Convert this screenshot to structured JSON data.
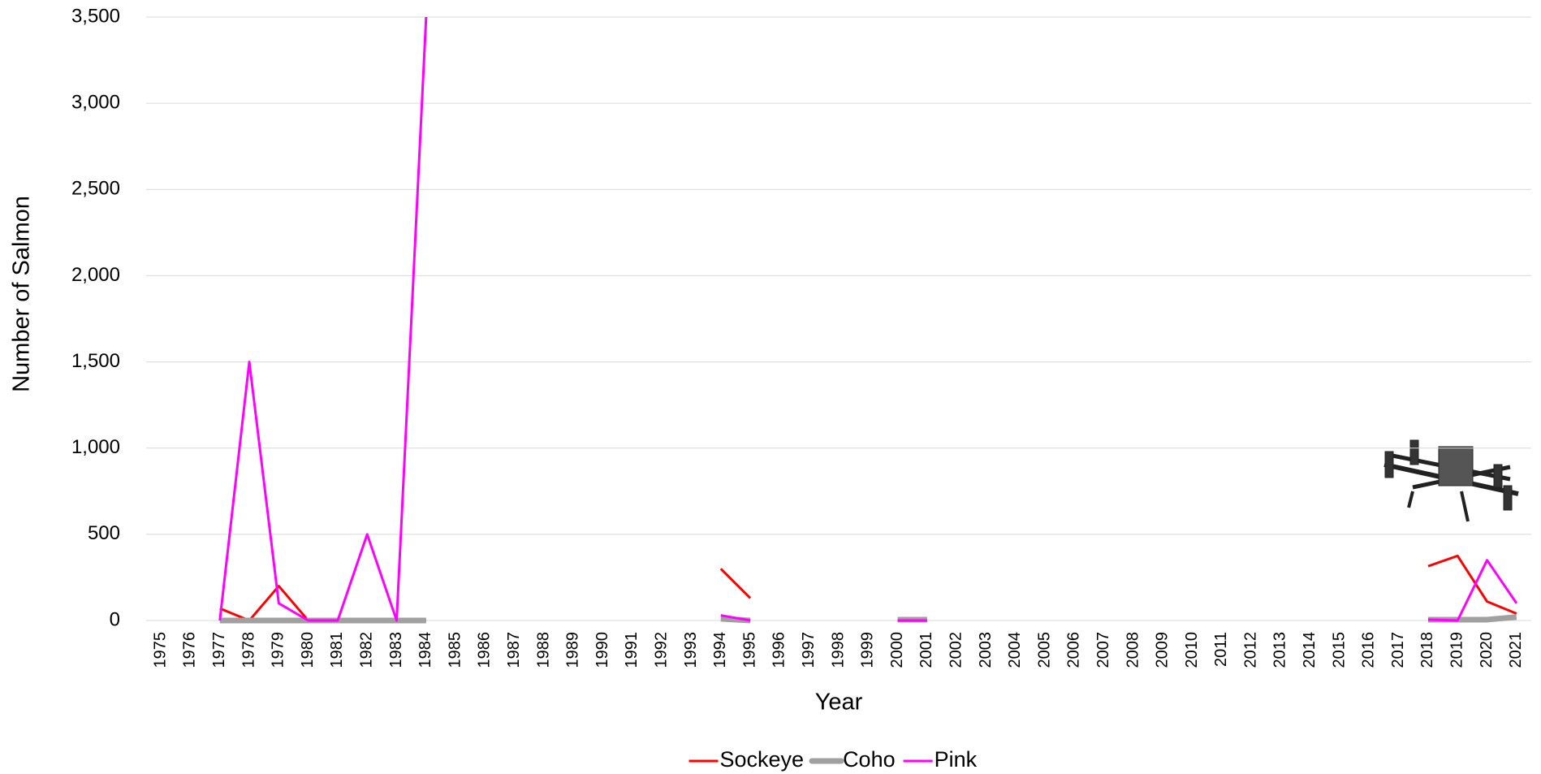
{
  "chart_data": {
    "type": "line",
    "y_label": "Number of Salmon",
    "x_label": "Year",
    "categories": [
      "1975",
      "1976",
      "1977",
      "1978",
      "1979",
      "1980",
      "1981",
      "1982",
      "1983",
      "1984",
      "1985",
      "1986",
      "1987",
      "1988",
      "1989",
      "1990",
      "1991",
      "1992",
      "1993",
      "1994",
      "1995",
      "1996",
      "1997",
      "1998",
      "1999",
      "2000",
      "2001",
      "2002",
      "2003",
      "2004",
      "2005",
      "2006",
      "2007",
      "2008",
      "2009",
      "2010",
      "2011",
      "2012",
      "2013",
      "2014",
      "2015",
      "2016",
      "2017",
      "2018",
      "2019",
      "2020",
      "2021"
    ],
    "series": [
      {
        "name": "Sockeye",
        "color": "#ff0000",
        "width": 3,
        "values": [
          null,
          null,
          70,
          0,
          200,
          0,
          0,
          0,
          0,
          0,
          null,
          null,
          null,
          null,
          null,
          null,
          null,
          null,
          null,
          300,
          130,
          null,
          null,
          null,
          null,
          null,
          null,
          null,
          null,
          null,
          null,
          null,
          null,
          null,
          null,
          null,
          null,
          null,
          null,
          null,
          null,
          null,
          null,
          315,
          375,
          110,
          40
        ]
      },
      {
        "name": "Coho",
        "color": "#a0a0a0",
        "width": 7,
        "values": [
          null,
          null,
          0,
          0,
          0,
          0,
          0,
          0,
          0,
          0,
          null,
          null,
          null,
          null,
          null,
          null,
          null,
          null,
          null,
          10,
          0,
          null,
          null,
          null,
          null,
          5,
          5,
          null,
          null,
          null,
          null,
          null,
          null,
          null,
          null,
          null,
          null,
          null,
          null,
          null,
          null,
          null,
          null,
          5,
          5,
          5,
          20
        ]
      },
      {
        "name": "Pink",
        "color": "#ff00ff",
        "width": 3,
        "values": [
          null,
          null,
          0,
          1500,
          100,
          0,
          0,
          500,
          0,
          3500,
          null,
          null,
          null,
          null,
          null,
          null,
          null,
          null,
          null,
          30,
          0,
          null,
          null,
          null,
          null,
          0,
          0,
          null,
          null,
          null,
          null,
          null,
          null,
          null,
          null,
          null,
          null,
          null,
          null,
          null,
          null,
          null,
          null,
          5,
          0,
          350,
          100
        ]
      }
    ],
    "ylim": [
      0,
      3500
    ],
    "yticks": [
      0,
      {
        "value": 500,
        "label": "500"
      },
      {
        "value": 1000,
        "label": "1,000"
      },
      {
        "value": 1500,
        "label": "1,500"
      },
      {
        "value": 2000,
        "label": "2,000"
      },
      {
        "value": 2500,
        "label": "2,500"
      },
      {
        "value": 3000,
        "label": "3,000"
      },
      {
        "value": 3500,
        "label": "3,500"
      }
    ],
    "grid": true,
    "legend": "bottom"
  }
}
